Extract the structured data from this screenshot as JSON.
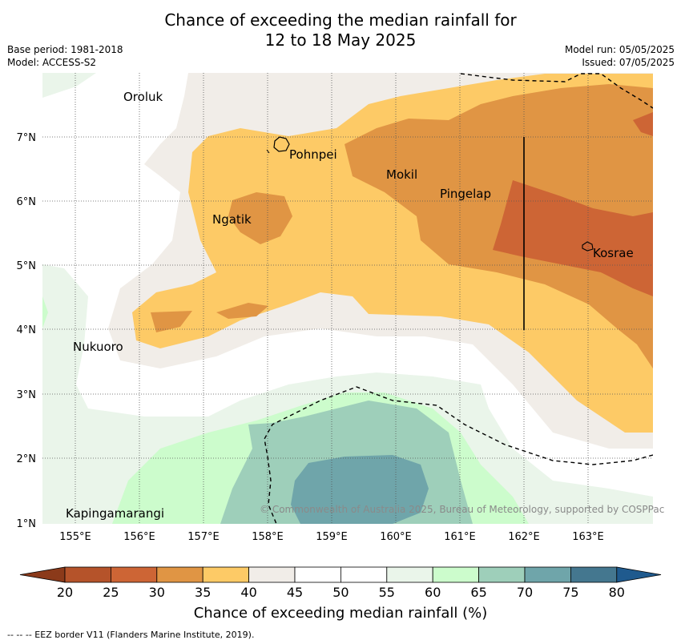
{
  "title": {
    "line1": "Chance of exceeding the median rainfall for",
    "line2": "12 to 18 May 2025"
  },
  "meta": {
    "base_period": "Base period: 1981-2018",
    "model": "Model: ACCESS-S2",
    "model_run": "Model run: 05/05/2025",
    "issued": "Issued: 07/05/2025"
  },
  "map": {
    "x_ticks": [
      "155°E",
      "156°E",
      "157°E",
      "158°E",
      "159°E",
      "160°E",
      "161°E",
      "162°E",
      "163°E"
    ],
    "y_ticks": [
      "7°N",
      "6°N",
      "5°N",
      "4°N",
      "3°N",
      "2°N",
      "1°N"
    ],
    "places": [
      "Oroluk",
      "Pohnpei",
      "Mokil",
      "Pingelap",
      "Ngatik",
      "Kosrae",
      "Nukuoro",
      "Kapingamarangi"
    ],
    "copyright": "© Commonwealth of Australia 2025, Bureau of Meteorology, supported by COSPPac"
  },
  "colorbar": {
    "ticks": [
      "20",
      "25",
      "30",
      "35",
      "40",
      "45",
      "50",
      "55",
      "60",
      "65",
      "70",
      "75",
      "80"
    ],
    "label": "Chance of exceeding median rainfall (%)",
    "colors": [
      "#8b3a1a",
      "#b5532a",
      "#cd6535",
      "#e09544",
      "#fdca66",
      "#f1ede8",
      "#ffffff",
      "#ffffff",
      "#eaf5ea",
      "#ccfccc",
      "#9ecfba",
      "#6fa5aa",
      "#44778f",
      "#1f5a8e"
    ]
  },
  "legend_note": "--  --  -- EEZ border V11 (Flanders Marine Institute, 2019)."
}
